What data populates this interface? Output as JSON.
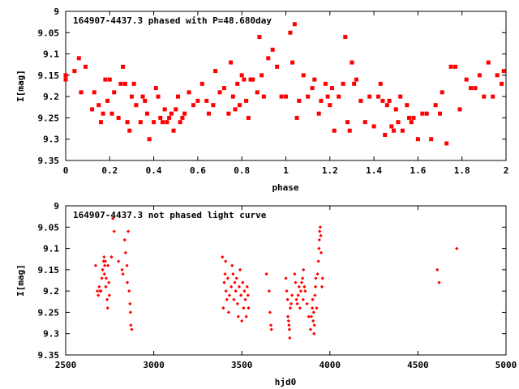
{
  "chart_data": [
    {
      "type": "scatter",
      "title": "164907-4437.3 phased with P=48.680day",
      "xlabel": "phase",
      "ylabel": "I[mag]",
      "xlim": [
        0,
        2
      ],
      "ylim": [
        9.35,
        9.0
      ],
      "y_inverted": true,
      "xticks": [
        "0",
        "0.2",
        "0.4",
        "0.6",
        "0.8",
        "1",
        "1.2",
        "1.4",
        "1.6",
        "1.8",
        "2"
      ],
      "xtick_values": [
        0,
        0.2,
        0.4,
        0.6,
        0.8,
        1.0,
        1.2,
        1.4,
        1.6,
        1.8,
        2.0
      ],
      "yticks": [
        "9",
        "9.05",
        "9.1",
        "9.15",
        "9.2",
        "9.25",
        "9.3",
        "9.35"
      ],
      "ytick_values": [
        9.0,
        9.05,
        9.1,
        9.15,
        9.2,
        9.25,
        9.3,
        9.35
      ],
      "marker_color": "#ff0000",
      "points": [
        [
          0.0,
          9.15
        ],
        [
          0.0,
          9.16
        ],
        [
          0.04,
          9.14
        ],
        [
          0.06,
          9.11
        ],
        [
          0.07,
          9.19
        ],
        [
          0.09,
          9.13
        ],
        [
          0.12,
          9.23
        ],
        [
          0.13,
          9.19
        ],
        [
          0.15,
          9.22
        ],
        [
          0.16,
          9.26
        ],
        [
          0.17,
          9.24
        ],
        [
          0.18,
          9.16
        ],
        [
          0.19,
          9.21
        ],
        [
          0.2,
          9.16
        ],
        [
          0.21,
          9.24
        ],
        [
          0.22,
          9.19
        ],
        [
          0.24,
          9.25
        ],
        [
          0.25,
          9.17
        ],
        [
          0.26,
          9.13
        ],
        [
          0.27,
          9.17
        ],
        [
          0.28,
          9.26
        ],
        [
          0.29,
          9.28
        ],
        [
          0.3,
          9.2
        ],
        [
          0.31,
          9.17
        ],
        [
          0.32,
          9.22
        ],
        [
          0.34,
          9.26
        ],
        [
          0.35,
          9.2
        ],
        [
          0.36,
          9.21
        ],
        [
          0.37,
          9.24
        ],
        [
          0.38,
          9.3
        ],
        [
          0.4,
          9.26
        ],
        [
          0.41,
          9.18
        ],
        [
          0.42,
          9.2
        ],
        [
          0.43,
          9.25
        ],
        [
          0.44,
          9.26
        ],
        [
          0.45,
          9.23
        ],
        [
          0.46,
          9.26
        ],
        [
          0.47,
          9.25
        ],
        [
          0.48,
          9.24
        ],
        [
          0.49,
          9.28
        ],
        [
          0.5,
          9.23
        ],
        [
          0.51,
          9.2
        ],
        [
          0.52,
          9.26
        ],
        [
          0.53,
          9.25
        ],
        [
          0.54,
          9.24
        ],
        [
          0.56,
          9.19
        ],
        [
          0.58,
          9.22
        ],
        [
          0.6,
          9.21
        ],
        [
          0.62,
          9.17
        ],
        [
          0.64,
          9.21
        ],
        [
          0.65,
          9.24
        ],
        [
          0.67,
          9.22
        ],
        [
          0.68,
          9.14
        ],
        [
          0.7,
          9.19
        ],
        [
          0.72,
          9.18
        ],
        [
          0.74,
          9.24
        ],
        [
          0.75,
          9.12
        ],
        [
          0.76,
          9.2
        ],
        [
          0.77,
          9.23
        ],
        [
          0.78,
          9.17
        ],
        [
          0.79,
          9.22
        ],
        [
          0.8,
          9.15
        ],
        [
          0.81,
          9.16
        ],
        [
          0.82,
          9.21
        ],
        [
          0.83,
          9.25
        ],
        [
          0.84,
          9.16
        ],
        [
          0.85,
          9.16
        ],
        [
          0.87,
          9.19
        ],
        [
          0.88,
          9.06
        ],
        [
          0.89,
          9.15
        ],
        [
          0.9,
          9.2
        ],
        [
          0.92,
          9.11
        ],
        [
          0.94,
          9.09
        ],
        [
          0.96,
          9.13
        ],
        [
          0.98,
          9.2
        ],
        [
          1.0,
          9.2
        ],
        [
          1.02,
          9.05
        ],
        [
          1.03,
          9.12
        ],
        [
          1.04,
          9.03
        ],
        [
          1.05,
          9.25
        ],
        [
          1.06,
          9.21
        ],
        [
          1.08,
          9.15
        ],
        [
          1.1,
          9.2
        ],
        [
          1.12,
          9.18
        ],
        [
          1.13,
          9.16
        ],
        [
          1.15,
          9.24
        ],
        [
          1.16,
          9.21
        ],
        [
          1.18,
          9.17
        ],
        [
          1.19,
          9.2
        ],
        [
          1.2,
          9.22
        ],
        [
          1.21,
          9.18
        ],
        [
          1.22,
          9.28
        ],
        [
          1.24,
          9.2
        ],
        [
          1.26,
          9.17
        ],
        [
          1.27,
          9.06
        ],
        [
          1.28,
          9.26
        ],
        [
          1.29,
          9.28
        ],
        [
          1.3,
          9.12
        ],
        [
          1.31,
          9.17
        ],
        [
          1.32,
          9.16
        ],
        [
          1.34,
          9.21
        ],
        [
          1.36,
          9.26
        ],
        [
          1.38,
          9.2
        ],
        [
          1.4,
          9.27
        ],
        [
          1.42,
          9.2
        ],
        [
          1.43,
          9.17
        ],
        [
          1.44,
          9.21
        ],
        [
          1.45,
          9.29
        ],
        [
          1.46,
          9.22
        ],
        [
          1.47,
          9.21
        ],
        [
          1.48,
          9.27
        ],
        [
          1.49,
          9.28
        ],
        [
          1.5,
          9.23
        ],
        [
          1.51,
          9.26
        ],
        [
          1.52,
          9.2
        ],
        [
          1.53,
          9.28
        ],
        [
          1.55,
          9.22
        ],
        [
          1.56,
          9.25
        ],
        [
          1.57,
          9.26
        ],
        [
          1.58,
          9.25
        ],
        [
          1.6,
          9.3
        ],
        [
          1.62,
          9.24
        ],
        [
          1.64,
          9.24
        ],
        [
          1.66,
          9.3
        ],
        [
          1.68,
          9.22
        ],
        [
          1.7,
          9.24
        ],
        [
          1.71,
          9.19
        ],
        [
          1.73,
          9.31
        ],
        [
          1.75,
          9.13
        ],
        [
          1.77,
          9.13
        ],
        [
          1.79,
          9.23
        ],
        [
          1.82,
          9.16
        ],
        [
          1.84,
          9.18
        ],
        [
          1.86,
          9.18
        ],
        [
          1.88,
          9.15
        ],
        [
          1.9,
          9.2
        ],
        [
          1.92,
          9.12
        ],
        [
          1.94,
          9.2
        ],
        [
          1.96,
          9.15
        ],
        [
          1.98,
          9.17
        ],
        [
          1.99,
          9.14
        ]
      ]
    },
    {
      "type": "scatter",
      "title": "164907-4437.3 not phased light curve",
      "xlabel": "hjd0",
      "ylabel": "I[mag]",
      "xlim": [
        2500,
        5000
      ],
      "ylim": [
        9.35,
        9.0
      ],
      "y_inverted": true,
      "xticks": [
        "2500",
        "3000",
        "3500",
        "4000",
        "4500",
        "5000"
      ],
      "xtick_values": [
        2500,
        3000,
        3500,
        4000,
        4500,
        5000
      ],
      "yticks": [
        "9",
        "9.05",
        "9.1",
        "9.15",
        "9.2",
        "9.25",
        "9.3",
        "9.35"
      ],
      "ytick_values": [
        9.0,
        9.05,
        9.1,
        9.15,
        9.2,
        9.25,
        9.3,
        9.35
      ],
      "marker_color": "#ff0000",
      "points": [
        [
          2670,
          9.14
        ],
        [
          2680,
          9.2
        ],
        [
          2685,
          9.21
        ],
        [
          2690,
          9.19
        ],
        [
          2695,
          9.2
        ],
        [
          2700,
          9.2
        ],
        [
          2705,
          9.17
        ],
        [
          2710,
          9.15
        ],
        [
          2715,
          9.13
        ],
        [
          2718,
          9.12
        ],
        [
          2720,
          9.16
        ],
        [
          2722,
          9.14
        ],
        [
          2725,
          9.13
        ],
        [
          2728,
          9.19
        ],
        [
          2730,
          9.17
        ],
        [
          2735,
          9.22
        ],
        [
          2738,
          9.24
        ],
        [
          2740,
          9.14
        ],
        [
          2745,
          9.18
        ],
        [
          2748,
          9.21
        ],
        [
          2760,
          9.12
        ],
        [
          2768,
          9.03
        ],
        [
          2775,
          9.06
        ],
        [
          2800,
          9.13
        ],
        [
          2820,
          9.15
        ],
        [
          2825,
          9.16
        ],
        [
          2835,
          9.08
        ],
        [
          2840,
          9.11
        ],
        [
          2848,
          9.14
        ],
        [
          2850,
          9.18
        ],
        [
          2855,
          9.06
        ],
        [
          2860,
          9.2
        ],
        [
          2865,
          9.23
        ],
        [
          2868,
          9.25
        ],
        [
          2870,
          9.28
        ],
        [
          2875,
          9.29
        ],
        [
          3390,
          9.12
        ],
        [
          3395,
          9.24
        ],
        [
          3400,
          9.18
        ],
        [
          3405,
          9.16
        ],
        [
          3408,
          9.13
        ],
        [
          3410,
          9.2
        ],
        [
          3415,
          9.22
        ],
        [
          3420,
          9.17
        ],
        [
          3425,
          9.25
        ],
        [
          3430,
          9.21
        ],
        [
          3440,
          9.19
        ],
        [
          3445,
          9.14
        ],
        [
          3450,
          9.16
        ],
        [
          3455,
          9.22
        ],
        [
          3460,
          9.18
        ],
        [
          3465,
          9.2
        ],
        [
          3470,
          9.17
        ],
        [
          3475,
          9.23
        ],
        [
          3480,
          9.26
        ],
        [
          3485,
          9.19
        ],
        [
          3490,
          9.15
        ],
        [
          3495,
          9.21
        ],
        [
          3500,
          9.27
        ],
        [
          3505,
          9.18
        ],
        [
          3510,
          9.24
        ],
        [
          3515,
          9.2
        ],
        [
          3520,
          9.22
        ],
        [
          3525,
          9.26
        ],
        [
          3530,
          9.19
        ],
        [
          3535,
          9.21
        ],
        [
          3538,
          9.24
        ],
        [
          3640,
          9.16
        ],
        [
          3655,
          9.2
        ],
        [
          3660,
          9.25
        ],
        [
          3665,
          9.28
        ],
        [
          3668,
          9.29
        ],
        [
          3750,
          9.17
        ],
        [
          3755,
          9.2
        ],
        [
          3760,
          9.22
        ],
        [
          3762,
          9.26
        ],
        [
          3765,
          9.27
        ],
        [
          3768,
          9.28
        ],
        [
          3770,
          9.29
        ],
        [
          3772,
          9.31
        ],
        [
          3775,
          9.24
        ],
        [
          3780,
          9.23
        ],
        [
          3785,
          9.21
        ],
        [
          3800,
          9.16
        ],
        [
          3805,
          9.18
        ],
        [
          3810,
          9.22
        ],
        [
          3815,
          9.23
        ],
        [
          3820,
          9.21
        ],
        [
          3825,
          9.19
        ],
        [
          3830,
          9.24
        ],
        [
          3835,
          9.2
        ],
        [
          3840,
          9.18
        ],
        [
          3845,
          9.17
        ],
        [
          3848,
          9.22
        ],
        [
          3850,
          9.15
        ],
        [
          3855,
          9.19
        ],
        [
          3860,
          9.2
        ],
        [
          3870,
          9.23
        ],
        [
          3880,
          9.26
        ],
        [
          3890,
          9.29
        ],
        [
          3895,
          9.26
        ],
        [
          3900,
          9.24
        ],
        [
          3902,
          9.22
        ],
        [
          3905,
          9.27
        ],
        [
          3908,
          9.25
        ],
        [
          3910,
          9.3
        ],
        [
          3912,
          9.28
        ],
        [
          3915,
          9.21
        ],
        [
          3918,
          9.19
        ],
        [
          3920,
          9.17
        ],
        [
          3925,
          9.24
        ],
        [
          3930,
          9.16
        ],
        [
          3935,
          9.13
        ],
        [
          3938,
          9.1
        ],
        [
          3940,
          9.08
        ],
        [
          3942,
          9.06
        ],
        [
          3945,
          9.05
        ],
        [
          3948,
          9.07
        ],
        [
          3950,
          9.11
        ],
        [
          3955,
          9.19
        ],
        [
          3958,
          9.17
        ],
        [
          4610,
          9.15
        ],
        [
          4620,
          9.18
        ],
        [
          4720,
          9.1
        ]
      ]
    }
  ]
}
